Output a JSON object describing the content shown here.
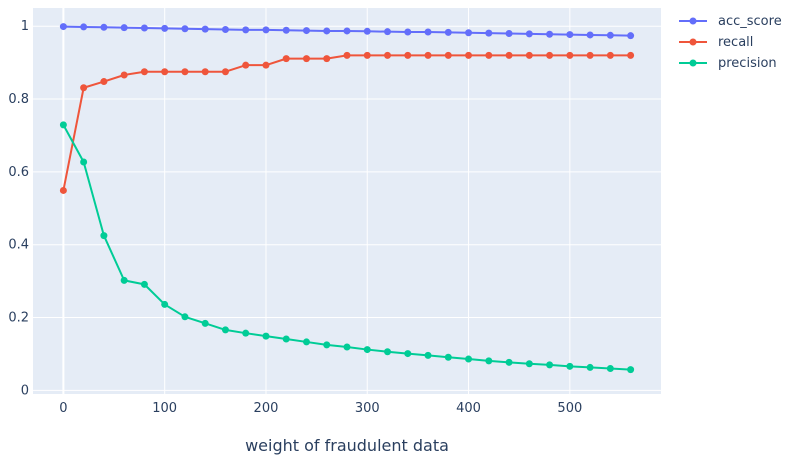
{
  "chart_data": {
    "type": "line",
    "xlabel": "weight of fraudulent data",
    "ylabel": "",
    "xlim": [
      -30,
      590
    ],
    "ylim": [
      -0.01,
      1.05
    ],
    "x_ticks": [
      0,
      100,
      200,
      300,
      400,
      500
    ],
    "y_ticks": [
      0,
      0.2,
      0.4,
      0.6,
      0.8,
      1
    ],
    "grid": true,
    "legend_position": "top-right",
    "x": [
      0,
      20,
      40,
      60,
      80,
      100,
      120,
      140,
      160,
      180,
      200,
      220,
      240,
      260,
      280,
      300,
      320,
      340,
      360,
      380,
      400,
      420,
      440,
      460,
      480,
      500,
      520,
      540,
      560
    ],
    "series": [
      {
        "name": "acc_score",
        "color": "#636efa",
        "values": [
          0.999,
          0.998,
          0.997,
          0.996,
          0.995,
          0.994,
          0.993,
          0.992,
          0.991,
          0.99,
          0.99,
          0.989,
          0.988,
          0.987,
          0.987,
          0.986,
          0.985,
          0.984,
          0.984,
          0.983,
          0.982,
          0.981,
          0.98,
          0.979,
          0.978,
          0.977,
          0.976,
          0.975,
          0.974
        ]
      },
      {
        "name": "recall",
        "color": "#ef553b",
        "values": [
          0.549,
          0.831,
          0.848,
          0.866,
          0.875,
          0.875,
          0.875,
          0.875,
          0.875,
          0.893,
          0.893,
          0.911,
          0.911,
          0.911,
          0.92,
          0.92,
          0.92,
          0.92,
          0.92,
          0.92,
          0.92,
          0.92,
          0.92,
          0.92,
          0.92,
          0.92,
          0.92,
          0.92,
          0.92
        ]
      },
      {
        "name": "precision",
        "color": "#00cc96",
        "values": [
          0.729,
          0.627,
          0.425,
          0.302,
          0.291,
          0.236,
          0.202,
          0.184,
          0.166,
          0.157,
          0.149,
          0.141,
          0.133,
          0.125,
          0.119,
          0.112,
          0.106,
          0.101,
          0.096,
          0.091,
          0.086,
          0.081,
          0.077,
          0.073,
          0.07,
          0.066,
          0.063,
          0.06,
          0.057
        ]
      }
    ]
  }
}
